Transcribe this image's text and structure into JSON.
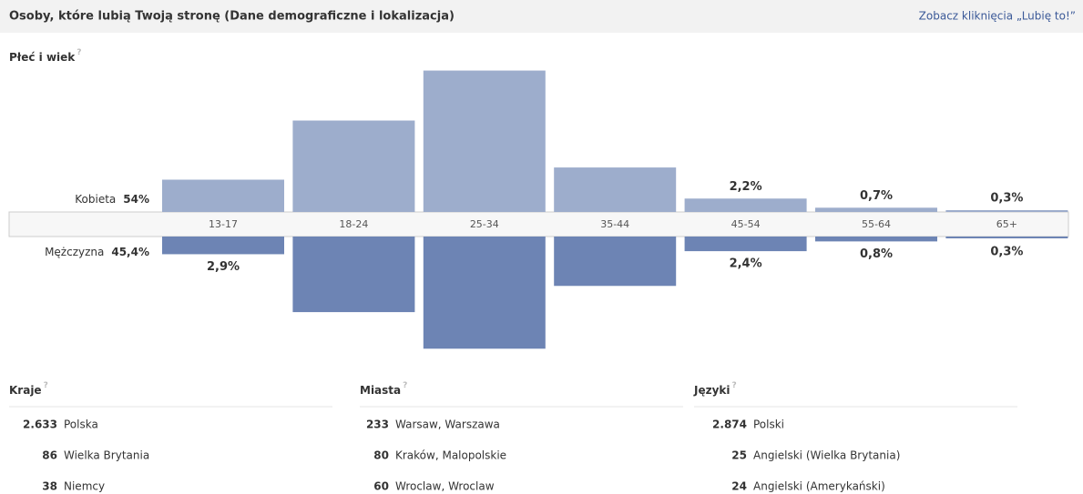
{
  "header": {
    "title": "Osoby, które lubią Twoją stronę (Dane demograficzne i lokalizacja)",
    "link": "Zobacz kliknięcia „Lubię to!”"
  },
  "help": "?",
  "chart_data": {
    "type": "bar",
    "title": "Płeć i wiek",
    "categories": [
      "13-17",
      "18-24",
      "25-34",
      "35-44",
      "45-54",
      "55-64",
      "65+"
    ],
    "series": [
      {
        "name": "Kobieta",
        "total": "54%",
        "color": "#9dadcc",
        "values": [
          5.3,
          15,
          23.2,
          7.3,
          2.2,
          0.7,
          0.3
        ],
        "value_labels": [
          "5,3%",
          "15%",
          "23,2%",
          "7,3%",
          "2,2%",
          "0,7%",
          "0,3%"
        ]
      },
      {
        "name": "Mężczyzna",
        "total": "45,4%",
        "color": "#6d84b4",
        "values": [
          2.9,
          12.4,
          18.4,
          8.1,
          2.4,
          0.8,
          0.3
        ],
        "value_labels": [
          "2,9%",
          "12,4%",
          "18,4%",
          "8,1%",
          "2,4%",
          "0,8%",
          "0,3%"
        ]
      }
    ]
  },
  "lists": [
    {
      "title": "Kraje",
      "rows": [
        [
          "2.633",
          "Polska"
        ],
        [
          "86",
          "Wielka Brytania"
        ],
        [
          "38",
          "Niemcy"
        ]
      ]
    },
    {
      "title": "Miasta",
      "rows": [
        [
          "233",
          "Warsaw, Warszawa"
        ],
        [
          "80",
          "Kraków, Malopolskie"
        ],
        [
          "60",
          "Wroclaw, Wroclaw"
        ]
      ]
    },
    {
      "title": "Języki",
      "rows": [
        [
          "2.874",
          "Polski"
        ],
        [
          "25",
          "Angielski (Wielka Brytania)"
        ],
        [
          "24",
          "Angielski (Amerykański)"
        ]
      ]
    }
  ]
}
